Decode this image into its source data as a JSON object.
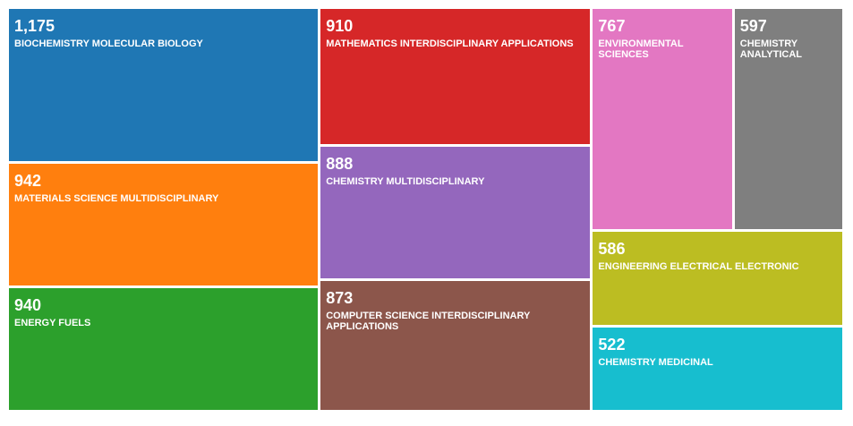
{
  "chart_data": {
    "type": "treemap",
    "items": [
      {
        "label": "BIOCHEMISTRY MOLECULAR BIOLOGY",
        "value": 1175,
        "display": "1,175",
        "color": "#1f77b4"
      },
      {
        "label": "MATERIALS SCIENCE MULTIDISCIPLINARY",
        "value": 942,
        "display": "942",
        "color": "#ff7f0e"
      },
      {
        "label": "ENERGY FUELS",
        "value": 940,
        "display": "940",
        "color": "#2ca02c"
      },
      {
        "label": "MATHEMATICS INTERDISCIPLINARY APPLICATIONS",
        "value": 910,
        "display": "910",
        "color": "#d62728"
      },
      {
        "label": "CHEMISTRY MULTIDISCIPLINARY",
        "value": 888,
        "display": "888",
        "color": "#9467bd"
      },
      {
        "label": "COMPUTER SCIENCE INTERDISCIPLINARY APPLICATIONS",
        "value": 873,
        "display": "873",
        "color": "#8c564b"
      },
      {
        "label": "ENVIRONMENTAL SCIENCES",
        "value": 767,
        "display": "767",
        "color": "#e377c2"
      },
      {
        "label": "CHEMISTRY ANALYTICAL",
        "value": 597,
        "display": "597",
        "color": "#7f7f7f"
      },
      {
        "label": "ENGINEERING ELECTRICAL ELECTRONIC",
        "value": 586,
        "display": "586",
        "color": "#bcbd22"
      },
      {
        "label": "CHEMISTRY MEDICINAL",
        "value": 522,
        "display": "522",
        "color": "#17becf"
      }
    ]
  }
}
